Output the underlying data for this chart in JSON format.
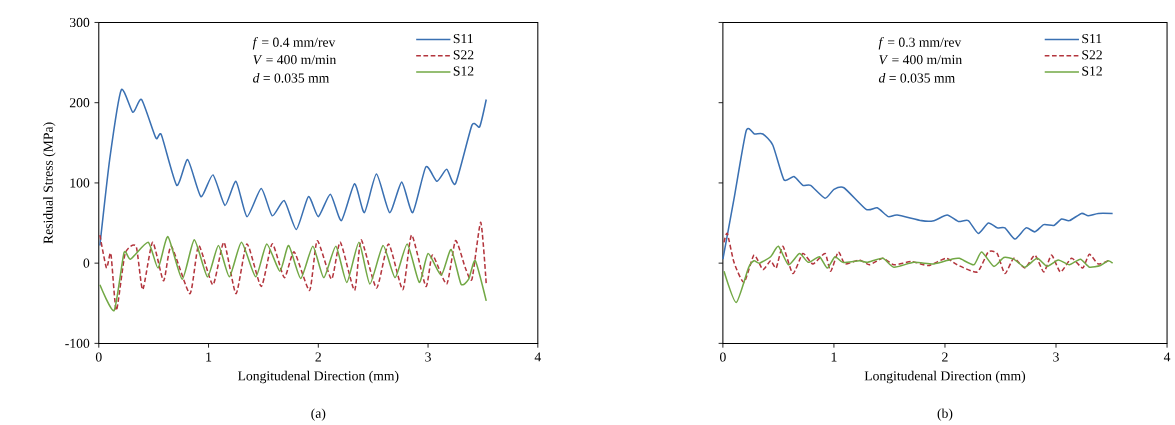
{
  "chart_data": [
    {
      "type": "line",
      "title": "(a)",
      "xlabel": "Longitudenal Direction (mm)",
      "ylabel": "Residual Stress (MPa)",
      "annotations": [
        "*f* = 0.4 mm/rev",
        "*V* = 400 m/min",
        "*d* = 0.035 mm"
      ],
      "xlim": [
        0,
        4
      ],
      "xticks": [
        0,
        1,
        2,
        3,
        4
      ],
      "ylim": [
        -100,
        300
      ],
      "yticks": [
        -100,
        0,
        100,
        200,
        300
      ],
      "legend": "top right",
      "series": [
        {
          "name": "S11",
          "color": "#3a70b2",
          "line_style": "solid",
          "x": [
            0.01,
            0.1,
            0.205,
            0.31,
            0.39,
            0.52,
            0.57,
            0.71,
            0.81,
            0.93,
            1.04,
            1.15,
            1.25,
            1.35,
            1.48,
            1.58,
            1.69,
            1.8,
            1.91,
            2.0,
            2.11,
            2.21,
            2.33,
            2.42,
            2.53,
            2.65,
            2.76,
            2.86,
            2.98,
            3.08,
            3.17,
            3.25,
            3.4,
            3.47,
            3.53
          ],
          "values": [
            22,
            130,
            216,
            188,
            204,
            156,
            160,
            97,
            129,
            83,
            110,
            72,
            102,
            58,
            93,
            59,
            78,
            42,
            83,
            58,
            86,
            53,
            99,
            63,
            111,
            63,
            101,
            63,
            120,
            102,
            117,
            99,
            172,
            170,
            204
          ]
        },
        {
          "name": "S22",
          "color": "#b3353d",
          "line_style": "dashed",
          "x": [
            0.01,
            0.07,
            0.11,
            0.16,
            0.24,
            0.34,
            0.4,
            0.49,
            0.59,
            0.66,
            0.83,
            0.91,
            1.04,
            1.14,
            1.25,
            1.35,
            1.48,
            1.58,
            1.69,
            1.78,
            1.92,
            1.99,
            2.12,
            2.2,
            2.33,
            2.39,
            2.53,
            2.64,
            2.77,
            2.85,
            2.98,
            3.04,
            3.17,
            3.25,
            3.34,
            3.4,
            3.48,
            3.53
          ],
          "values": [
            35,
            -6,
            12,
            -59,
            12,
            21,
            -33,
            26,
            -22,
            21,
            -38,
            22,
            -27,
            26,
            -38,
            24,
            -29,
            24,
            -18,
            14,
            -34,
            28,
            -20,
            26,
            -34,
            29,
            -31,
            24,
            -33,
            35,
            -29,
            10,
            -26,
            28,
            -6,
            -20,
            51,
            -26
          ]
        },
        {
          "name": "S12",
          "color": "#72a845",
          "line_style": "solid",
          "x": [
            0.01,
            0.14,
            0.23,
            0.29,
            0.45,
            0.54,
            0.63,
            0.76,
            0.87,
            0.99,
            1.09,
            1.19,
            1.3,
            1.43,
            1.53,
            1.65,
            1.73,
            1.84,
            1.95,
            2.05,
            2.16,
            2.26,
            2.37,
            2.47,
            2.59,
            2.7,
            2.81,
            2.92,
            3.0,
            3.12,
            3.21,
            3.3,
            3.37,
            3.43,
            3.53
          ],
          "values": [
            -27,
            -59,
            13,
            5,
            26,
            -6,
            33,
            -20,
            29,
            -17,
            22,
            -17,
            26,
            -17,
            24,
            -10,
            22,
            -19,
            21,
            -18,
            21,
            -24,
            26,
            -26,
            22,
            -18,
            24,
            -24,
            12,
            -15,
            17,
            -26,
            -20,
            3,
            -47
          ]
        }
      ]
    },
    {
      "type": "line",
      "title": "(b)",
      "xlabel": "Longitudenal Direction (mm)",
      "annotations": [
        "*f* = 0.3 mm/rev",
        "*V* = 400 m/min",
        "*d* = 0.035 mm"
      ],
      "xlim": [
        0,
        4
      ],
      "xticks": [
        0,
        1,
        2,
        3,
        4
      ],
      "ylim": [
        -100,
        300
      ],
      "yticks": [
        -100,
        0,
        100,
        200,
        300
      ],
      "tick_labels": "x",
      "legend": "top right",
      "series": [
        {
          "name": "S11",
          "color": "#3a70b2",
          "line_style": "solid",
          "x": [
            0.0,
            0.1,
            0.21,
            0.285,
            0.36,
            0.45,
            0.55,
            0.64,
            0.72,
            0.79,
            0.92,
            1.0,
            1.09,
            1.29,
            1.39,
            1.49,
            1.57,
            1.79,
            1.9,
            2.02,
            2.12,
            2.21,
            2.3,
            2.39,
            2.47,
            2.54,
            2.63,
            2.73,
            2.81,
            2.89,
            2.98,
            3.05,
            3.12,
            3.23,
            3.29,
            3.38,
            3.51
          ],
          "values": [
            5,
            80,
            165,
            161,
            161,
            147,
            104,
            108,
            97,
            97,
            81,
            92,
            94,
            67,
            69,
            58,
            60,
            53,
            53,
            60,
            52,
            53,
            37,
            50,
            44,
            44,
            30,
            44,
            39,
            48,
            47,
            55,
            53,
            62,
            59,
            62,
            62
          ]
        },
        {
          "name": "S22",
          "color": "#b3353d",
          "line_style": "dashed",
          "x": [
            0.01,
            0.04,
            0.1,
            0.19,
            0.28,
            0.36,
            0.43,
            0.48,
            0.54,
            0.63,
            0.72,
            0.81,
            0.92,
            0.97,
            1.04,
            1.1,
            1.23,
            1.32,
            1.44,
            1.54,
            1.7,
            1.85,
            2.01,
            2.11,
            2.29,
            2.39,
            2.47,
            2.54,
            2.62,
            2.72,
            2.81,
            2.89,
            2.96,
            3.04,
            3.14,
            3.24,
            3.3,
            3.38,
            3.47
          ],
          "values": [
            26,
            37,
            1,
            -24,
            10,
            -8,
            3,
            -6,
            21,
            -13,
            12,
            -1,
            12,
            -10,
            14,
            -1,
            4,
            -2,
            6,
            -2,
            2,
            -3,
            6,
            -2,
            -11,
            14,
            12,
            -13,
            6,
            -6,
            10,
            -11,
            10,
            -11,
            6,
            -6,
            11,
            -1,
            3
          ]
        },
        {
          "name": "S12",
          "color": "#72a845",
          "line_style": "solid",
          "x": [
            0.01,
            0.12,
            0.23,
            0.28,
            0.33,
            0.43,
            0.5,
            0.59,
            0.69,
            0.77,
            0.87,
            0.94,
            1.01,
            1.08,
            1.23,
            1.3,
            1.44,
            1.54,
            1.72,
            1.9,
            2.06,
            2.13,
            2.26,
            2.33,
            2.44,
            2.53,
            2.62,
            2.72,
            2.83,
            2.92,
            3.02,
            3.12,
            3.22,
            3.3,
            3.4,
            3.47,
            3.51
          ],
          "values": [
            -10,
            -49,
            -6,
            3,
            0,
            8,
            21,
            -2,
            12,
            1,
            8,
            -6,
            8,
            1,
            3,
            1,
            6,
            -5,
            1,
            -1,
            5,
            6,
            -2,
            14,
            -4,
            7,
            5,
            -5,
            6,
            -4,
            4,
            -2,
            5,
            -5,
            -3,
            3,
            0
          ]
        }
      ]
    }
  ]
}
